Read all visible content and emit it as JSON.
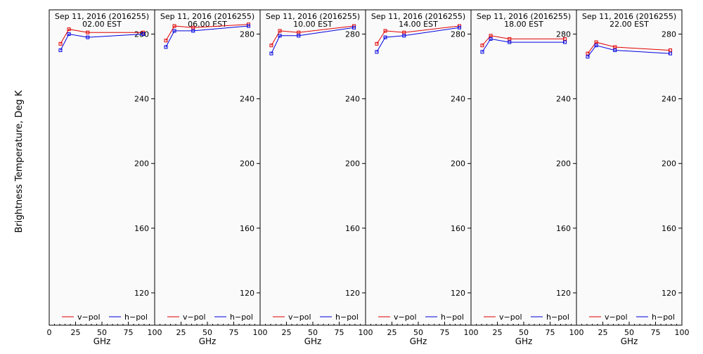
{
  "figure": {
    "ylabel": "Brightness Temperature, Deg K",
    "xlabel": "GHz",
    "legend": {
      "vpol_label": "v−pol",
      "hpol_label": "h−pol",
      "placement": "bottom"
    },
    "colors": {
      "vpol": "#e00000",
      "hpol": "#0000e0",
      "panel_bg": "#fafafa",
      "frame": "#000000"
    }
  },
  "chart_data": [
    {
      "type": "line",
      "title": "Sep 11, 2016 (2016255)",
      "subtitle": "02.00 EST",
      "x": [
        10.65,
        18.7,
        36.5,
        89.0
      ],
      "series": [
        {
          "name": "v−pol",
          "values": [
            274,
            283,
            281,
            281
          ]
        },
        {
          "name": "h−pol",
          "values": [
            270,
            280,
            278,
            280
          ]
        }
      ],
      "xlim": [
        0,
        100
      ],
      "ylim": [
        100,
        295
      ],
      "xticks": [
        "0",
        "25",
        "50",
        "75",
        "100"
      ],
      "yticks": [
        "120",
        "160",
        "200",
        "240",
        "280"
      ]
    },
    {
      "type": "line",
      "title": "Sep 11, 2016 (2016255)",
      "subtitle": "06.00 EST",
      "x": [
        10.65,
        18.7,
        36.5,
        89.0
      ],
      "series": [
        {
          "name": "v−pol",
          "values": [
            276,
            285,
            284,
            286
          ]
        },
        {
          "name": "h−pol",
          "values": [
            272,
            282,
            282,
            285
          ]
        }
      ],
      "xlim": [
        0,
        100
      ],
      "ylim": [
        100,
        295
      ],
      "xticks": [
        "",
        "25",
        "50",
        "75",
        "100"
      ],
      "yticks": [
        "120",
        "160",
        "200",
        "240",
        "280"
      ]
    },
    {
      "type": "line",
      "title": "Sep 11, 2016 (2016255)",
      "subtitle": "10.00 EST",
      "x": [
        10.65,
        18.7,
        36.5,
        89.0
      ],
      "series": [
        {
          "name": "v−pol",
          "values": [
            273,
            282,
            281,
            285
          ]
        },
        {
          "name": "h−pol",
          "values": [
            268,
            279,
            279,
            284
          ]
        }
      ],
      "xlim": [
        0,
        100
      ],
      "ylim": [
        100,
        295
      ],
      "xticks": [
        "",
        "25",
        "50",
        "75",
        "100"
      ],
      "yticks": [
        "120",
        "160",
        "200",
        "240",
        "280"
      ]
    },
    {
      "type": "line",
      "title": "Sep 11, 2016 (2016255)",
      "subtitle": "14.00 EST",
      "x": [
        10.65,
        18.7,
        36.5,
        89.0
      ],
      "series": [
        {
          "name": "v−pol",
          "values": [
            274,
            282,
            281,
            285
          ]
        },
        {
          "name": "h−pol",
          "values": [
            269,
            278,
            279,
            284
          ]
        }
      ],
      "xlim": [
        0,
        100
      ],
      "ylim": [
        100,
        295
      ],
      "xticks": [
        "",
        "25",
        "50",
        "75",
        "100"
      ],
      "yticks": [
        "120",
        "160",
        "200",
        "240",
        "280"
      ]
    },
    {
      "type": "line",
      "title": "Sep 11, 2016 (2016255)",
      "subtitle": "18.00 EST",
      "x": [
        10.65,
        18.7,
        36.5,
        89.0
      ],
      "series": [
        {
          "name": "v−pol",
          "values": [
            273,
            279,
            277,
            277
          ]
        },
        {
          "name": "h−pol",
          "values": [
            269,
            277,
            275,
            275
          ]
        }
      ],
      "xlim": [
        0,
        100
      ],
      "ylim": [
        100,
        295
      ],
      "xticks": [
        "",
        "25",
        "50",
        "75",
        "100"
      ],
      "yticks": [
        "120",
        "160",
        "200",
        "240",
        "280"
      ]
    },
    {
      "type": "line",
      "title": "Sep 11, 2016 (2016255)",
      "subtitle": "22.00 EST",
      "x": [
        10.65,
        18.7,
        36.5,
        89.0
      ],
      "series": [
        {
          "name": "v−pol",
          "values": [
            268,
            275,
            272,
            270
          ]
        },
        {
          "name": "h−pol",
          "values": [
            266,
            273,
            270,
            268
          ]
        }
      ],
      "xlim": [
        0,
        100
      ],
      "ylim": [
        100,
        295
      ],
      "xticks": [
        "",
        "25",
        "50",
        "75",
        "100"
      ],
      "yticks": [
        "120",
        "160",
        "200",
        "240",
        "280"
      ]
    }
  ]
}
